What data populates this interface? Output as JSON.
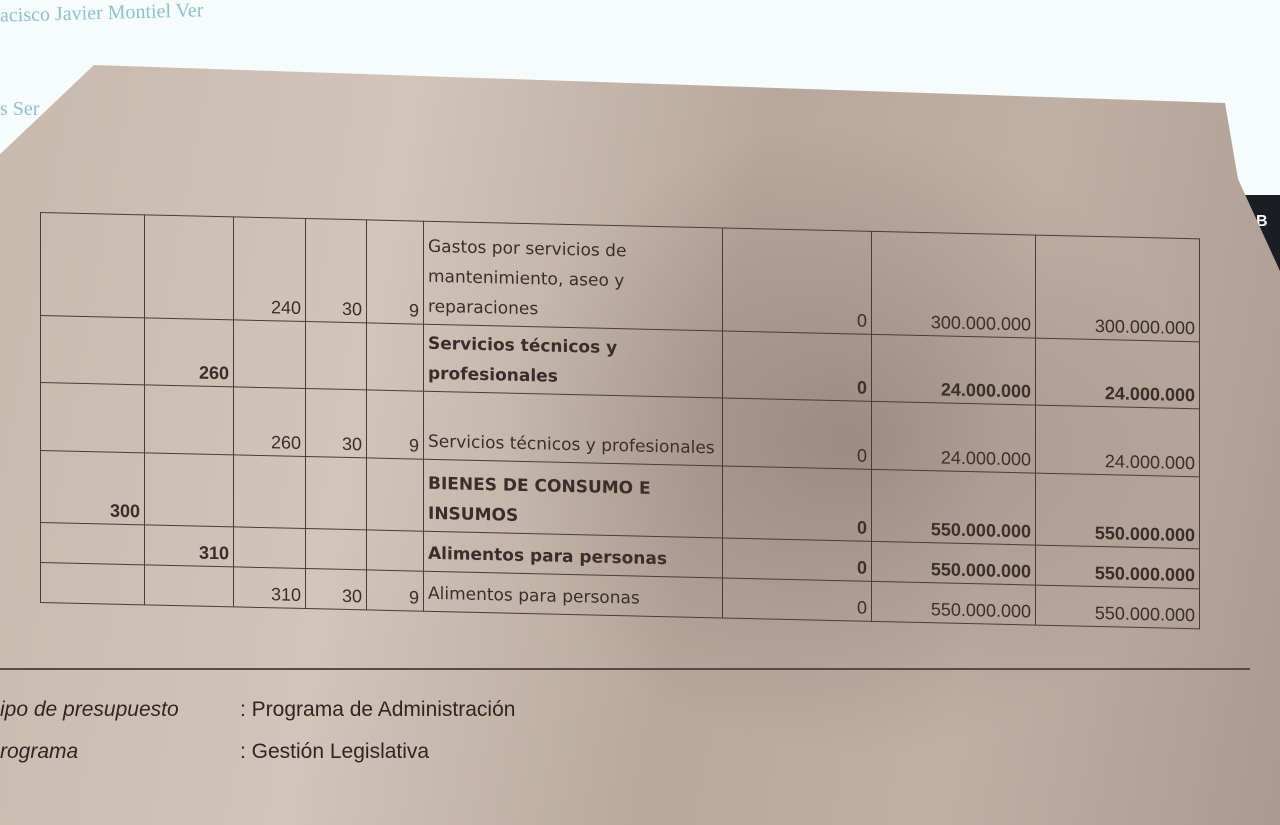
{
  "background": {
    "name_fragment": "acisco Javier Montiel Ver",
    "fragment2": "s Ser"
  },
  "device": {
    "key_label": "B"
  },
  "table": {
    "rows": [
      {
        "c1": "",
        "c2": "",
        "c3": "240",
        "c4": "30",
        "c5": "9",
        "desc": "Gastos por servicios de mantenimiento, aseo y reparaciones",
        "v1": "0",
        "v2": "300.000.000",
        "v3": "300.000.000",
        "bold": false
      },
      {
        "c1": "",
        "c2": "260",
        "c3": "",
        "c4": "",
        "c5": "",
        "desc": "Servicios técnicos y profesionales",
        "v1": "0",
        "v2": "24.000.000",
        "v3": "24.000.000",
        "bold": true
      },
      {
        "c1": "",
        "c2": "",
        "c3": "260",
        "c4": "30",
        "c5": "9",
        "desc": "Servicios técnicos y profesionales",
        "v1": "0",
        "v2": "24.000.000",
        "v3": "24.000.000",
        "bold": false
      },
      {
        "c1": "300",
        "c2": "",
        "c3": "",
        "c4": "",
        "c5": "",
        "desc": "BIENES DE CONSUMO E INSUMOS",
        "v1": "0",
        "v2": "550.000.000",
        "v3": "550.000.000",
        "bold": true
      },
      {
        "c1": "",
        "c2": "310",
        "c3": "",
        "c4": "",
        "c5": "",
        "desc": "Alimentos para personas",
        "v1": "0",
        "v2": "550.000.000",
        "v3": "550.000.000",
        "bold": true
      },
      {
        "c1": "",
        "c2": "",
        "c3": "310",
        "c4": "30",
        "c5": "9",
        "desc": "Alimentos para personas",
        "v1": "0",
        "v2": "550.000.000",
        "v3": "550.000.000",
        "bold": false
      }
    ]
  },
  "footer": {
    "tipo_label": "ipo de presupuesto",
    "tipo_value": ": Programa de Administración",
    "programa_label": "rograma",
    "programa_value": ": Gestión Legislativa"
  }
}
